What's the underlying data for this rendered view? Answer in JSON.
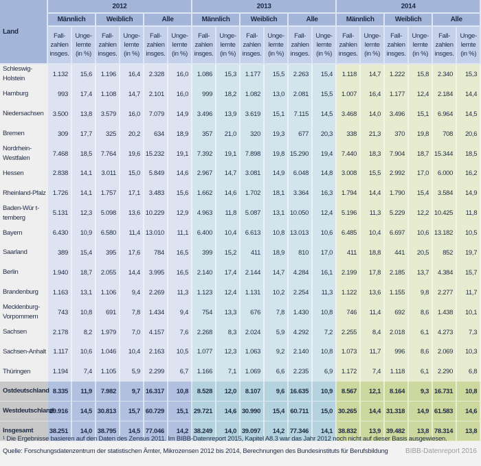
{
  "header": {
    "land_label": "Land",
    "years": [
      "2012",
      "2013",
      "2014"
    ],
    "genders": [
      "Männlich",
      "Weiblich",
      "Alle"
    ],
    "sub_cases": "Fall-\nzahlen\ninsges.",
    "sub_unskilled": "Unge-\nlernte\n(in %)"
  },
  "rows": [
    {
      "land": "Schleswig-\nHolstein",
      "values": [
        "1.132",
        "15,6",
        "1.196",
        "16,4",
        "2.328",
        "16,0",
        "1.086",
        "15,3",
        "1.177",
        "15,5",
        "2.263",
        "15,4",
        "1.118",
        "14,7",
        "1.222",
        "15,8",
        "2.340",
        "15,3"
      ]
    },
    {
      "land": "Hamburg",
      "values": [
        "993",
        "17,4",
        "1.108",
        "14,7",
        "2.101",
        "16,0",
        "999",
        "18,2",
        "1.082",
        "13,0",
        "2.081",
        "15,5",
        "1.007",
        "16,4",
        "1.177",
        "12,4",
        "2.184",
        "14,4"
      ]
    },
    {
      "land": "Niedersachsen",
      "values": [
        "3.500",
        "13,8",
        "3.579",
        "16,0",
        "7.079",
        "14,9",
        "3.496",
        "13,9",
        "3.619",
        "15,1",
        "7.115",
        "14,5",
        "3.468",
        "14,0",
        "3.496",
        "15,1",
        "6.964",
        "14,5"
      ]
    },
    {
      "land": "Bremen",
      "values": [
        "309",
        "17,7",
        "325",
        "20,2",
        "634",
        "18,9",
        "357",
        "21,0",
        "320",
        "19,3",
        "677",
        "20,3",
        "338",
        "21,3",
        "370",
        "19,8",
        "708",
        "20,6"
      ]
    },
    {
      "land": "Nordrhein-\nWestfalen",
      "values": [
        "7.468",
        "18,5",
        "7.764",
        "19,6",
        "15.232",
        "19,1",
        "7.392",
        "19,1",
        "7.898",
        "19,8",
        "15.290",
        "19,4",
        "7.440",
        "18,3",
        "7.904",
        "18,7",
        "15.344",
        "18,5"
      ]
    },
    {
      "land": "Hessen",
      "values": [
        "2.838",
        "14,1",
        "3.011",
        "15,0",
        "5.849",
        "14,6",
        "2.967",
        "14,7",
        "3.081",
        "14,9",
        "6.048",
        "14,8",
        "3.008",
        "15,5",
        "2.992",
        "17,0",
        "6.000",
        "16,2"
      ]
    },
    {
      "land": "Rheinland-Pfalz",
      "values": [
        "1.726",
        "14,1",
        "1.757",
        "17,1",
        "3.483",
        "15,6",
        "1.662",
        "14,6",
        "1.702",
        "18,1",
        "3.364",
        "16,3",
        "1.794",
        "14,4",
        "1.790",
        "15,4",
        "3.584",
        "14,9"
      ]
    },
    {
      "land": "Baden-Wür t-\ntemberg",
      "values": [
        "5.131",
        "12,3",
        "5.098",
        "13,6",
        "10.229",
        "12,9",
        "4.963",
        "11,8",
        "5.087",
        "13,1",
        "10.050",
        "12,4",
        "5.196",
        "11,3",
        "5.229",
        "12,2",
        "10.425",
        "11,8"
      ]
    },
    {
      "land": "Bayern",
      "values": [
        "6.430",
        "10,9",
        "6.580",
        "11,4",
        "13.010",
        "11,1",
        "6.400",
        "10,4",
        "6.613",
        "10,8",
        "13.013",
        "10,6",
        "6.485",
        "10,4",
        "6.697",
        "10,6",
        "13.182",
        "10,5"
      ]
    },
    {
      "land": "Saarland",
      "values": [
        "389",
        "15,4",
        "395",
        "17,6",
        "784",
        "16,5",
        "399",
        "15,2",
        "411",
        "18,9",
        "810",
        "17,0",
        "411",
        "18,8",
        "441",
        "20,5",
        "852",
        "19,7"
      ]
    },
    {
      "land": "Berlin",
      "values": [
        "1.940",
        "18,7",
        "2.055",
        "14,4",
        "3.995",
        "16,5",
        "2.140",
        "17,4",
        "2.144",
        "14,7",
        "4.284",
        "16,1",
        "2.199",
        "17,8",
        "2.185",
        "13,7",
        "4.384",
        "15,7"
      ]
    },
    {
      "land": "Brandenburg",
      "values": [
        "1.163",
        "13,1",
        "1.106",
        "9,4",
        "2.269",
        "11,3",
        "1.123",
        "12,4",
        "1.131",
        "10,2",
        "2.254",
        "11,3",
        "1.122",
        "13,6",
        "1.155",
        "9,8",
        "2.277",
        "11,7"
      ]
    },
    {
      "land": "Mecklenburg-\nVorpommern",
      "values": [
        "743",
        "10,8",
        "691",
        "7,8",
        "1.434",
        "9,4",
        "754",
        "13,3",
        "676",
        "7,8",
        "1.430",
        "10,8",
        "746",
        "11,4",
        "692",
        "8,6",
        "1.438",
        "10,1"
      ]
    },
    {
      "land": "Sachsen",
      "values": [
        "2.178",
        "8,2",
        "1.979",
        "7,0",
        "4.157",
        "7,6",
        "2.268",
        "8,3",
        "2.024",
        "5,9",
        "4.292",
        "7,2",
        "2.255",
        "8,4",
        "2.018",
        "6,1",
        "4.273",
        "7,3"
      ]
    },
    {
      "land": "Sachsen-Anhalt",
      "values": [
        "1.117",
        "10,6",
        "1.046",
        "10,4",
        "2.163",
        "10,5",
        "1.077",
        "12,3",
        "1.063",
        "9,2",
        "2.140",
        "10,8",
        "1.073",
        "11,7",
        "996",
        "8,6",
        "2.069",
        "10,3"
      ]
    },
    {
      "land": "Thüringen",
      "values": [
        "1.194",
        "7,4",
        "1.105",
        "5,9",
        "2.299",
        "6,7",
        "1.166",
        "7,1",
        "1.069",
        "6,6",
        "2.235",
        "6,9",
        "1.172",
        "7,4",
        "1.118",
        "6,1",
        "2.290",
        "6,8"
      ]
    }
  ],
  "summary_rows": [
    {
      "land": "Ostdeutschland",
      "values": [
        "8.335",
        "11,9",
        "7.982",
        "9,7",
        "16.317",
        "10,8",
        "8.528",
        "12,0",
        "8.107",
        "9,6",
        "16.635",
        "10,9",
        "8.567",
        "12,1",
        "8.164",
        "9,3",
        "16.731",
        "10,8"
      ]
    },
    {
      "land": "Westdeutschland",
      "values": [
        "29.916",
        "14,5",
        "30.813",
        "15,7",
        "60.729",
        "15,1",
        "29.721",
        "14,6",
        "30.990",
        "15,4",
        "60.711",
        "15,0",
        "30.265",
        "14,4",
        "31.318",
        "14,9",
        "61.583",
        "14,6"
      ]
    },
    {
      "land": "Insgesamt",
      "values": [
        "38.251",
        "14,0",
        "38.795",
        "14,5",
        "77.046",
        "14,2",
        "38.249",
        "14,0",
        "39.097",
        "14,2",
        "77.346",
        "14,1",
        "38.832",
        "13,9",
        "39.482",
        "13,8",
        "78.314",
        "13,8"
      ]
    }
  ],
  "footnote": "¹ Die Ergebnisse basieren auf den Daten des Zensus 2011. Im BIBB-Datenreport 2015, Kapitel A8.3 war das Jahr 2012 noch nicht auf dieser Basis ausgewiesen.",
  "source": "Quelle: Forschungsdatenzentrum der statistischen Ämter, Mikrozensen 2012 bis 2014, Berechnungen des Bundesinstituts für Berufsbildung",
  "brand": "BIBB-Datenreport 2016",
  "colors": {
    "header": "#a3b5d8",
    "subheader": "#c5d0ea",
    "y2012": "#dde3f1",
    "y2013": "#d3e5ec",
    "y2014": "#e7ebcf"
  }
}
